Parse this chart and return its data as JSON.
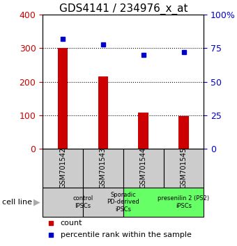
{
  "title": "GDS4141 / 234976_x_at",
  "samples": [
    "GSM701542",
    "GSM701543",
    "GSM701544",
    "GSM701545"
  ],
  "counts": [
    300,
    215,
    108,
    97
  ],
  "percentile_ranks": [
    82,
    78,
    70,
    72
  ],
  "ylim_left": [
    0,
    400
  ],
  "ylim_right": [
    0,
    100
  ],
  "yticks_left": [
    0,
    100,
    200,
    300,
    400
  ],
  "yticks_right": [
    0,
    25,
    50,
    75,
    100
  ],
  "yticklabels_right": [
    "0",
    "25",
    "50",
    "75",
    "100%"
  ],
  "bar_color": "#cc0000",
  "dot_color": "#0000cc",
  "cell_line_groups": [
    {
      "label": "control\nIPSCs",
      "span": [
        0,
        1
      ],
      "color": "#cccccc"
    },
    {
      "label": "Sporadic\nPD-derived\niPSCs",
      "span": [
        1,
        2
      ],
      "color": "#cccccc"
    },
    {
      "label": "presenilin 2 (PS2)\niPSCs",
      "span": [
        2,
        4
      ],
      "color": "#66ff66"
    }
  ],
  "legend_count_label": "count",
  "legend_percentile_label": "percentile rank within the sample",
  "cell_line_label": "cell line",
  "xlabel_box_color": "#cccccc",
  "title_fontsize": 11,
  "tick_fontsize": 9,
  "bar_width": 0.25
}
